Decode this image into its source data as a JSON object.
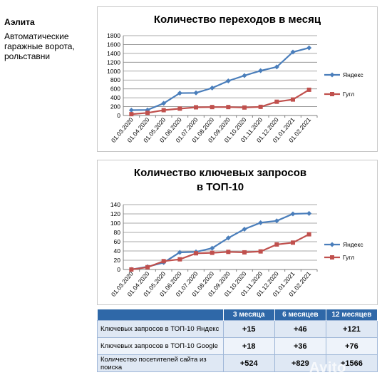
{
  "side": {
    "title": "Аэлита",
    "description": "Автоматические гаражные ворота, рольставни"
  },
  "chart_data": [
    {
      "type": "line",
      "title": "Количество переходов в месяц",
      "categories": [
        "01.03.2020",
        "01.04.2020",
        "01.05.2020",
        "01.06.2020",
        "01.07.2020",
        "01.08.2020",
        "01.09.2020",
        "01.10.2020",
        "01.11.2020",
        "01.12.2020",
        "01.01.2021",
        "01.02.2021"
      ],
      "ylim": [
        0,
        1800
      ],
      "yticks": [
        "0",
        "200",
        "400",
        "600",
        "800",
        "1000",
        "1200",
        "1400",
        "1600",
        "1800"
      ],
      "grid": true,
      "legend_position": "right",
      "series": [
        {
          "name": "Яндекс",
          "color": "#4a7ebb",
          "marker": "diamond",
          "values": [
            120,
            125,
            275,
            505,
            510,
            620,
            780,
            900,
            1010,
            1095,
            1430,
            1525
          ]
        },
        {
          "name": "Гугл",
          "color": "#c0504d",
          "marker": "square",
          "values": [
            30,
            60,
            120,
            155,
            185,
            190,
            190,
            180,
            195,
            310,
            360,
            580
          ]
        }
      ]
    },
    {
      "type": "line",
      "title": "Количество ключевых запросов в ТОП-10",
      "categories": [
        "01.03.2020",
        "01.04.2020",
        "01.05.2020",
        "01.06.2020",
        "01.07.2020",
        "01.08.2020",
        "01.09.2020",
        "01.10.2020",
        "01.11.2020",
        "01.12.2020",
        "01.01.2021",
        "01.02.2021"
      ],
      "ylim": [
        0,
        140
      ],
      "yticks": [
        "0",
        "20",
        "40",
        "60",
        "80",
        "100",
        "120",
        "140"
      ],
      "grid": true,
      "legend_position": "right",
      "series": [
        {
          "name": "Яндекс",
          "color": "#4a7ebb",
          "marker": "diamond",
          "values": [
            0,
            6,
            15,
            37,
            38,
            46,
            68,
            87,
            101,
            105,
            120,
            121
          ]
        },
        {
          "name": "Гугл",
          "color": "#c0504d",
          "marker": "square",
          "values": [
            0,
            5,
            18,
            22,
            35,
            36,
            38,
            37,
            39,
            54,
            58,
            76
          ]
        }
      ]
    }
  ],
  "stats_table": {
    "headers": [
      "",
      "3 месяца",
      "6 месяцев",
      "12 месяцев"
    ],
    "rows": [
      {
        "label": "Ключевых запросов в ТОП-10 Яндекс",
        "values": [
          "+15",
          "+46",
          "+121"
        ]
      },
      {
        "label": "Ключевых запросов в ТОП-10 Google",
        "values": [
          "+18",
          "+36",
          "+76"
        ]
      },
      {
        "label": "Количество посетителей сайта из поиска",
        "values": [
          "+524",
          "+829",
          "+1566"
        ]
      }
    ]
  },
  "watermark": "Avito"
}
